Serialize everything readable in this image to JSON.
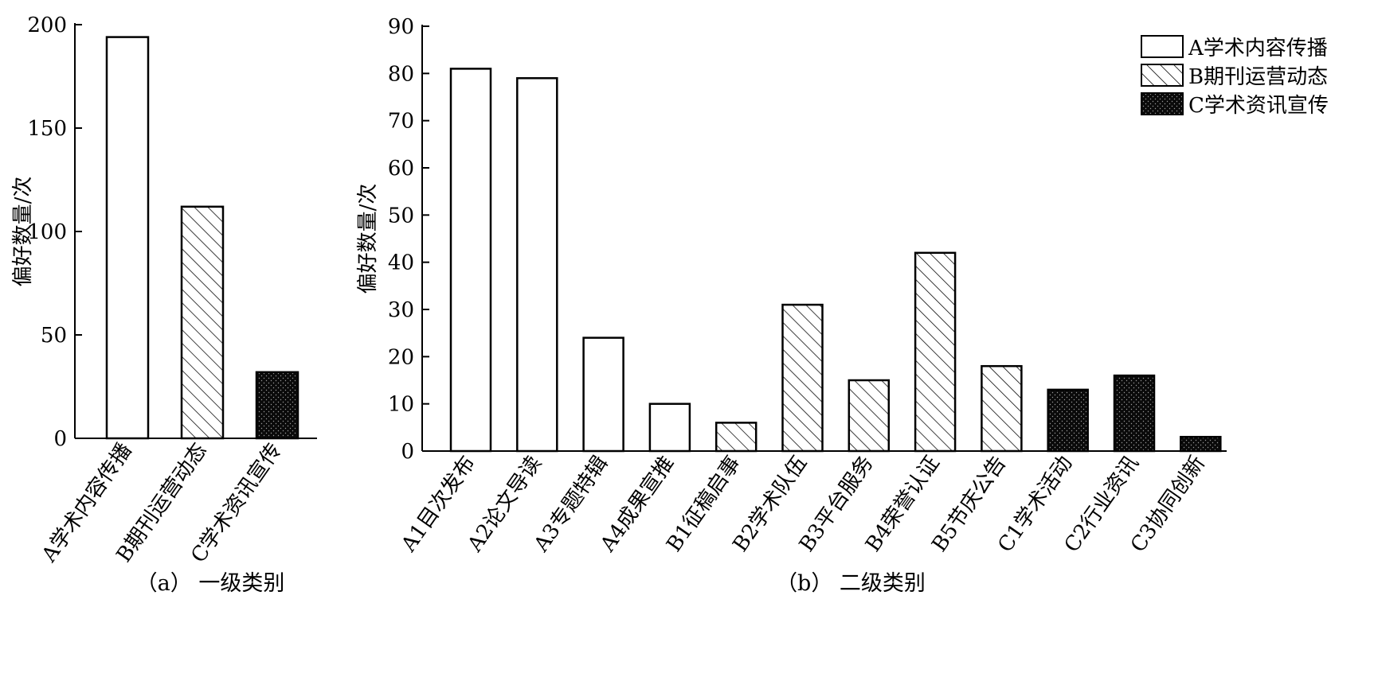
{
  "chart_data": [
    {
      "type": "bar",
      "caption": "（a） 一级类别",
      "ylabel": "偏好数量/次",
      "ylim": [
        0,
        200
      ],
      "yticks": [
        0,
        50,
        100,
        150,
        200
      ],
      "categories": [
        "A学术内容传播",
        "B期刊运营动态",
        "C学术资讯宣传"
      ],
      "values": [
        194,
        112,
        32
      ],
      "groups": [
        "A",
        "B",
        "C"
      ]
    },
    {
      "type": "bar",
      "caption": "（b） 二级类别",
      "ylabel": "偏好数量/次",
      "ylim": [
        0,
        90
      ],
      "yticks": [
        0,
        10,
        20,
        30,
        40,
        50,
        60,
        70,
        80,
        90
      ],
      "categories": [
        "A1目次发布",
        "A2论文导读",
        "A3专题特辑",
        "A4成果宣推",
        "B1征稿启事",
        "B2学术队伍",
        "B3平台服务",
        "B4荣誉认证",
        "B5节庆公告",
        "C1学术活动",
        "C2行业资讯",
        "C3协同创新"
      ],
      "values": [
        81,
        79,
        24,
        10,
        6,
        31,
        15,
        42,
        18,
        13,
        16,
        3
      ],
      "groups": [
        "A",
        "A",
        "A",
        "A",
        "B",
        "B",
        "B",
        "B",
        "B",
        "C",
        "C",
        "C"
      ],
      "legend": {
        "position": "top-right",
        "entries": [
          {
            "group": "A",
            "label": "A学术内容传播"
          },
          {
            "group": "B",
            "label": "B期刊运营动态"
          },
          {
            "group": "C",
            "label": "C学术资讯宣传"
          }
        ]
      }
    }
  ],
  "styles": {
    "A": "white",
    "B": "diagonal-hatch",
    "C": "black-dotted"
  }
}
